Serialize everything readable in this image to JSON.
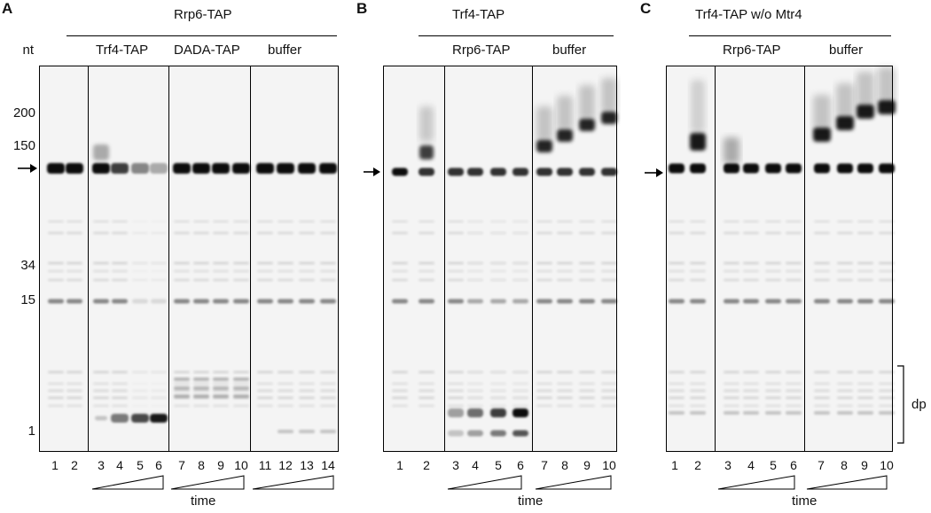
{
  "panel_a": {
    "letter": "A",
    "header": "Rrp6-TAP",
    "subheaders": [
      "Trf4-TAP",
      "DADA-TAP",
      "buffer"
    ],
    "nt_label": "nt",
    "markers": [
      "200",
      "150",
      "34",
      "15",
      "1"
    ],
    "lanes": [
      "1",
      "2",
      "3",
      "4",
      "5",
      "6",
      "7",
      "8",
      "9",
      "10",
      "11",
      "12",
      "13",
      "14"
    ],
    "time_label": "time"
  },
  "panel_b": {
    "letter": "B",
    "header": "Trf4-TAP",
    "subheaders": [
      "Rrp6-TAP",
      "buffer"
    ],
    "lanes": [
      "1",
      "2",
      "3",
      "4",
      "5",
      "6",
      "7",
      "8",
      "9",
      "10"
    ],
    "time_label": "time"
  },
  "panel_c": {
    "letter": "C",
    "header": "Trf4-TAP w/o Mtr4",
    "subheaders": [
      "Rrp6-TAP",
      "buffer"
    ],
    "lanes": [
      "1",
      "2",
      "3",
      "4",
      "5",
      "6",
      "7",
      "8",
      "9",
      "10"
    ],
    "time_label": "time",
    "bracket_label": "dp"
  }
}
